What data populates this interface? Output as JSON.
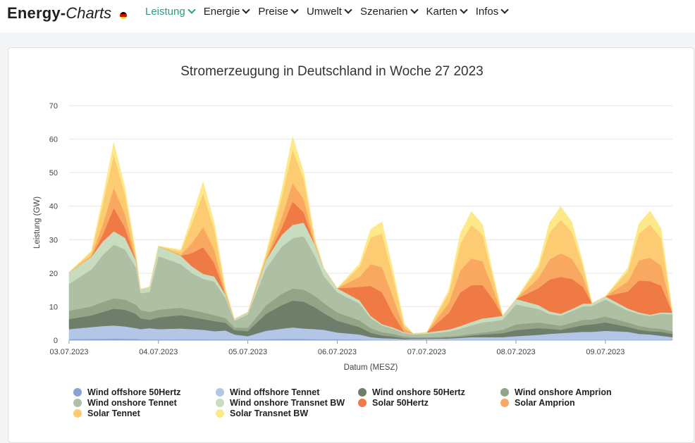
{
  "header": {
    "logo_main": "Energy",
    "logo_dash": "-",
    "logo_accent": "Charts",
    "nav": [
      {
        "label": "Leistung",
        "active": true
      },
      {
        "label": "Energie",
        "active": false
      },
      {
        "label": "Preise",
        "active": false
      },
      {
        "label": "Umwelt",
        "active": false
      },
      {
        "label": "Szenarien",
        "active": false
      },
      {
        "label": "Karten",
        "active": false
      },
      {
        "label": "Infos",
        "active": false
      }
    ]
  },
  "chart_data": {
    "type": "area",
    "stacked": true,
    "title": "Stromerzeugung in Deutschland in Woche 27 2023",
    "xlabel": "Datum (MESZ)",
    "ylabel": "Leistung (GW)",
    "ylim": [
      0,
      70
    ],
    "yticks": [
      0,
      10,
      20,
      30,
      40,
      50,
      60,
      70
    ],
    "x_unit": "days since 03.07.2023 00:00",
    "xlim": [
      0,
      6.75
    ],
    "xticks": [
      {
        "x": 0,
        "label": "03.07.2023"
      },
      {
        "x": 1,
        "label": "04.07.2023"
      },
      {
        "x": 2,
        "label": "05.07.2023"
      },
      {
        "x": 3,
        "label": "06.07.2023"
      },
      {
        "x": 4,
        "label": "07.07.2023"
      },
      {
        "x": 5,
        "label": "08.07.2023"
      },
      {
        "x": 6,
        "label": "09.07.2023"
      }
    ],
    "x": [
      0,
      0.25,
      0.375,
      0.5,
      0.625,
      0.75,
      0.8,
      0.9,
      1,
      1.25,
      1.375,
      1.5,
      1.625,
      1.75,
      1.85,
      2,
      2.2,
      2.375,
      2.5,
      2.625,
      2.75,
      2.85,
      3,
      3.25,
      3.375,
      3.5,
      3.625,
      3.75,
      3.85,
      4,
      4.25,
      4.375,
      4.5,
      4.625,
      4.75,
      4.85,
      5,
      5.25,
      5.375,
      5.5,
      5.625,
      5.75,
      5.85,
      6,
      6.25,
      6.375,
      6.5,
      6.625,
      6.75
    ],
    "series": [
      {
        "name": "Wind offshore 50Hertz",
        "color": "#8aa2d6",
        "values": [
          0.3,
          0.4,
          0.4,
          0.5,
          0.4,
          0.4,
          0.3,
          0.2,
          0.2,
          0.3,
          0.3,
          0.3,
          0.2,
          0.2,
          0.2,
          0.2,
          0.3,
          0.4,
          0.4,
          0.4,
          0.3,
          0.3,
          0.3,
          0.2,
          0.1,
          0.1,
          0.1,
          0.1,
          0.1,
          0.1,
          0.1,
          0.1,
          0.1,
          0.1,
          0.1,
          0.1,
          0.1,
          0.1,
          0.1,
          0.1,
          0.1,
          0.1,
          0.1,
          0.1,
          0.1,
          0.1,
          0.1,
          0.1,
          0.1
        ]
      },
      {
        "name": "Wind offshore Tennet",
        "color": "#b3c6e6",
        "values": [
          3,
          3.5,
          3.8,
          3.9,
          3.7,
          3.2,
          3,
          3.4,
          3.1,
          3.2,
          3,
          2.8,
          2.5,
          2.7,
          1.5,
          1,
          2.5,
          3,
          3.4,
          3.1,
          3,
          2.8,
          2,
          1.5,
          0.8,
          0.5,
          0.4,
          0.2,
          0.3,
          0.3,
          0.4,
          0.6,
          0.8,
          0.8,
          0.8,
          0.8,
          1.1,
          1.5,
          1.8,
          2,
          2.2,
          2.4,
          2.4,
          2.7,
          2.4,
          1.8,
          1.6,
          1.2,
          0.8
        ]
      },
      {
        "name": "Wind onshore 50Hertz",
        "color": "#6f7e6b",
        "values": [
          3,
          3.5,
          4.2,
          5,
          5,
          4.2,
          3.2,
          2.5,
          3.5,
          4,
          3.6,
          3.2,
          3,
          2.3,
          1.3,
          1.5,
          5,
          7,
          8,
          8,
          6.5,
          5,
          3.5,
          2.2,
          1.3,
          0.8,
          0.6,
          0.3,
          0.2,
          0.2,
          0.3,
          0.3,
          0.5,
          0.8,
          1,
          1.2,
          1.8,
          2,
          1.5,
          1,
          1.5,
          2,
          2.2,
          2.5,
          1.5,
          1.2,
          1,
          1.2,
          1
        ]
      },
      {
        "name": "Wind onshore Amprion",
        "color": "#94a487",
        "values": [
          2.5,
          2.7,
          3,
          3.1,
          3,
          2.8,
          2.5,
          2.3,
          2.3,
          2.2,
          2.1,
          2,
          1.8,
          1.4,
          0.8,
          1,
          2.5,
          3.4,
          3.6,
          3.6,
          3.4,
          3,
          2.5,
          2,
          1.4,
          1,
          0.8,
          0.5,
          0.3,
          0.3,
          0.3,
          0.4,
          0.5,
          0.6,
          0.8,
          1,
          1.7,
          1.7,
          1.4,
          1.2,
          1.4,
          1.6,
          1.5,
          1.8,
          1.3,
          1.2,
          1,
          0.9,
          0.8
        ]
      },
      {
        "name": "Wind onshore Tennet",
        "color": "#aebfa3",
        "values": [
          8,
          11,
          14,
          16,
          15,
          11,
          5,
          6,
          16,
          13,
          11,
          10,
          10,
          6,
          2,
          4,
          11,
          14,
          15,
          16,
          12,
          8,
          6,
          5,
          3,
          2,
          1.5,
          1,
          0.8,
          1,
          1.5,
          2,
          2.5,
          3,
          3,
          3,
          6,
          4,
          3,
          3,
          3.5,
          4,
          4,
          5,
          3.5,
          3.5,
          3.5,
          4.5,
          5
        ]
      },
      {
        "name": "Wind onshore Transnet BW",
        "color": "#c8dcc0",
        "values": [
          3.5,
          3.8,
          4,
          4,
          3.5,
          2,
          1.2,
          1.5,
          3,
          2.5,
          2,
          1.5,
          1.5,
          1,
          0.5,
          0.7,
          2.5,
          3.5,
          4,
          4,
          3.3,
          2.4,
          1.2,
          1,
          0.6,
          0.4,
          0.4,
          0.3,
          0.3,
          0.4,
          0.6,
          0.8,
          1,
          1.2,
          1.2,
          1.2,
          1.6,
          1.2,
          0.8,
          0.6,
          0.6,
          0.8,
          0.8,
          1,
          0.7,
          0.5,
          0.4,
          0.4,
          0.5
        ]
      },
      {
        "name": "Solar 50Hertz",
        "color": "#f07a45",
        "values": [
          0,
          0,
          2,
          7,
          3,
          0,
          0,
          0,
          0,
          0,
          4,
          8,
          4,
          0,
          0,
          0,
          0,
          2,
          7,
          3,
          0,
          0,
          0,
          4,
          9,
          9.5,
          4,
          0,
          0,
          0,
          5,
          10,
          11,
          10,
          5,
          0,
          0,
          5,
          9.5,
          11,
          9,
          5,
          0,
          0,
          5,
          9.5,
          10,
          8,
          0
        ]
      },
      {
        "name": "Solar Amprion",
        "color": "#f9a862",
        "values": [
          0,
          0.3,
          3,
          6,
          4,
          0.3,
          0,
          0,
          0,
          0.3,
          3,
          6,
          4,
          0.3,
          0,
          0,
          0.3,
          3,
          5.5,
          4,
          0.3,
          0,
          0,
          3,
          6.5,
          7.5,
          5,
          1,
          0,
          0,
          3,
          6.5,
          8,
          7,
          3,
          0,
          0,
          3,
          6,
          7,
          6,
          3,
          0,
          0,
          3,
          6,
          7,
          6,
          0
        ]
      },
      {
        "name": "Solar Tennet",
        "color": "#fccb72",
        "values": [
          0,
          1,
          6,
          10,
          6,
          1,
          0,
          0,
          0,
          1,
          6,
          10,
          6,
          1,
          0,
          0,
          1,
          6,
          10,
          6,
          1,
          0,
          0,
          3,
          8,
          10,
          6,
          1,
          0,
          0,
          3,
          8,
          10,
          8,
          3,
          0,
          0,
          3,
          8,
          10,
          8,
          3,
          0,
          0,
          3,
          8,
          10,
          8,
          0
        ]
      },
      {
        "name": "Solar Transnet BW",
        "color": "#fde98a",
        "values": [
          0,
          0.5,
          2,
          3.5,
          2,
          0.5,
          0,
          0,
          0,
          0.5,
          2,
          3.5,
          2,
          0.5,
          0,
          0,
          0.5,
          2,
          4,
          2,
          0.5,
          0,
          0,
          1,
          2.5,
          3.5,
          2,
          0.5,
          0,
          0,
          1,
          3,
          4,
          3,
          1,
          0,
          0,
          1,
          3,
          4,
          3,
          1,
          0,
          0,
          1,
          3,
          4,
          3,
          0
        ]
      }
    ]
  }
}
